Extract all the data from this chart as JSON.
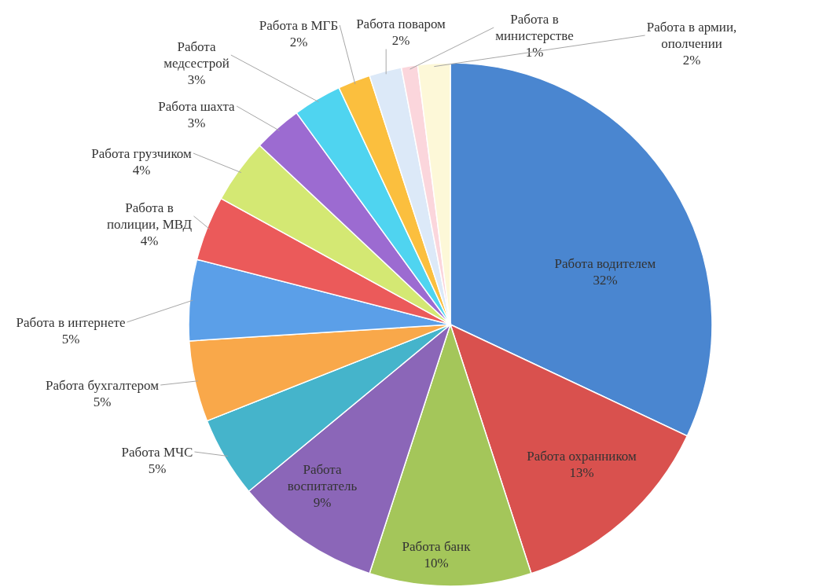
{
  "chart_data": {
    "type": "pie",
    "categories": [
      "Работа водителем",
      "Работа охранником",
      "Работа банк",
      "Работа воспитатель",
      "Работа МЧС",
      "Работа бухгалтером",
      "Работа в интернете",
      "Работа в полиции, МВД",
      "Работа грузчиком",
      "Работа шахта",
      "Работа медсестрой",
      "Работа в МГБ",
      "Работа поваром",
      "Работа в министерстве",
      "Работа в армии, ополчении"
    ],
    "values": [
      32,
      13,
      10,
      9,
      5,
      5,
      5,
      4,
      4,
      3,
      3,
      2,
      2,
      1,
      2
    ],
    "colors": [
      "#4a86d0",
      "#d9514e",
      "#a4c65a",
      "#8b66b8",
      "#45b4cb",
      "#f9a84a",
      "#5b9fe8",
      "#eb5a5a",
      "#d4e873",
      "#9c6bd1",
      "#4fd4f0",
      "#fbbf3e",
      "#dce9f8",
      "#fbd6dc",
      "#fdf8d8"
    ],
    "value_labels": [
      "32%",
      "13%",
      "10%",
      "9%",
      "5%",
      "5%",
      "5%",
      "4%",
      "4%",
      "3%",
      "3%",
      "2%",
      "2%",
      "1%",
      "2%"
    ]
  }
}
